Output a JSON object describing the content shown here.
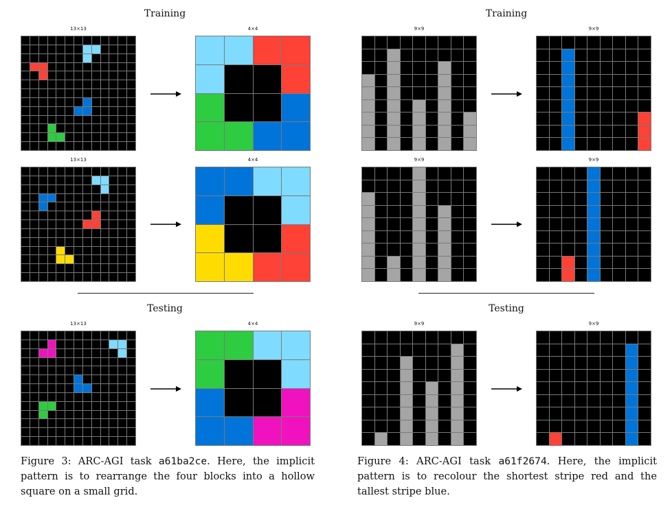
{
  "figure3": {
    "training_label": "Training",
    "testing_label": "Testing",
    "examples": [
      {
        "input": {
          "size_label": "13×13",
          "rows": 13,
          "cols": 13,
          "cells": [
            [
              1,
              7,
              "lightblue"
            ],
            [
              1,
              8,
              "lightblue"
            ],
            [
              2,
              7,
              "lightblue"
            ],
            [
              3,
              1,
              "red"
            ],
            [
              3,
              2,
              "red"
            ],
            [
              4,
              2,
              "red"
            ],
            [
              7,
              7,
              "blue"
            ],
            [
              8,
              6,
              "blue"
            ],
            [
              8,
              7,
              "blue"
            ],
            [
              10,
              3,
              "green"
            ],
            [
              11,
              3,
              "green"
            ],
            [
              11,
              4,
              "green"
            ]
          ]
        },
        "output": {
          "size_label": "4×4",
          "rows": 4,
          "cols": 4,
          "cells": [
            [
              0,
              0,
              "lightblue"
            ],
            [
              0,
              1,
              "lightblue"
            ],
            [
              1,
              0,
              "lightblue"
            ],
            [
              0,
              2,
              "red"
            ],
            [
              0,
              3,
              "red"
            ],
            [
              1,
              3,
              "red"
            ],
            [
              2,
              0,
              "green"
            ],
            [
              3,
              0,
              "green"
            ],
            [
              3,
              1,
              "green"
            ],
            [
              2,
              3,
              "blue"
            ],
            [
              3,
              2,
              "blue"
            ],
            [
              3,
              3,
              "blue"
            ]
          ]
        }
      },
      {
        "input": {
          "size_label": "13×13",
          "rows": 13,
          "cols": 13,
          "cells": [
            [
              1,
              8,
              "lightblue"
            ],
            [
              1,
              9,
              "lightblue"
            ],
            [
              2,
              9,
              "lightblue"
            ],
            [
              3,
              2,
              "blue"
            ],
            [
              3,
              3,
              "blue"
            ],
            [
              4,
              2,
              "blue"
            ],
            [
              5,
              8,
              "red"
            ],
            [
              6,
              7,
              "red"
            ],
            [
              6,
              8,
              "red"
            ],
            [
              9,
              4,
              "yellow"
            ],
            [
              10,
              4,
              "yellow"
            ],
            [
              10,
              5,
              "yellow"
            ]
          ]
        },
        "output": {
          "size_label": "4×4",
          "rows": 4,
          "cols": 4,
          "cells": [
            [
              0,
              0,
              "blue"
            ],
            [
              0,
              1,
              "blue"
            ],
            [
              1,
              0,
              "blue"
            ],
            [
              0,
              2,
              "lightblue"
            ],
            [
              0,
              3,
              "lightblue"
            ],
            [
              1,
              3,
              "lightblue"
            ],
            [
              2,
              0,
              "yellow"
            ],
            [
              3,
              0,
              "yellow"
            ],
            [
              3,
              1,
              "yellow"
            ],
            [
              2,
              3,
              "red"
            ],
            [
              3,
              2,
              "red"
            ],
            [
              3,
              3,
              "red"
            ]
          ]
        }
      },
      {
        "input": {
          "size_label": "13×13",
          "rows": 13,
          "cols": 13,
          "cells": [
            [
              1,
              3,
              "magenta"
            ],
            [
              2,
              2,
              "magenta"
            ],
            [
              2,
              3,
              "magenta"
            ],
            [
              1,
              10,
              "lightblue"
            ],
            [
              1,
              11,
              "lightblue"
            ],
            [
              2,
              11,
              "lightblue"
            ],
            [
              5,
              6,
              "blue"
            ],
            [
              6,
              6,
              "blue"
            ],
            [
              6,
              7,
              "blue"
            ],
            [
              8,
              2,
              "green"
            ],
            [
              8,
              3,
              "green"
            ],
            [
              9,
              2,
              "green"
            ]
          ]
        },
        "output": {
          "size_label": "4×4",
          "rows": 4,
          "cols": 4,
          "cells": [
            [
              0,
              0,
              "green"
            ],
            [
              0,
              1,
              "green"
            ],
            [
              1,
              0,
              "green"
            ],
            [
              0,
              2,
              "lightblue"
            ],
            [
              0,
              3,
              "lightblue"
            ],
            [
              1,
              3,
              "lightblue"
            ],
            [
              2,
              0,
              "blue"
            ],
            [
              3,
              0,
              "blue"
            ],
            [
              3,
              1,
              "blue"
            ],
            [
              2,
              3,
              "magenta"
            ],
            [
              3,
              2,
              "magenta"
            ],
            [
              3,
              3,
              "magenta"
            ]
          ]
        }
      }
    ],
    "caption": {
      "prefix": "Figure 3: ARC-AGI task ",
      "task_id": "a61ba2ce",
      "suffix": ". Here, the implicit pattern is to rearrange the four blocks into a hollow square on a small grid."
    }
  },
  "figure4": {
    "training_label": "Training",
    "testing_label": "Testing",
    "examples": [
      {
        "input": {
          "size_label": "9×9",
          "rows": 9,
          "cols": 9,
          "columns": [
            [
              0,
              6,
              "gray"
            ],
            [
              2,
              8,
              "gray"
            ],
            [
              4,
              4,
              "gray"
            ],
            [
              6,
              7,
              "gray"
            ],
            [
              8,
              3,
              "gray"
            ]
          ]
        },
        "output": {
          "size_label": "9×9",
          "rows": 9,
          "cols": 9,
          "columns": [
            [
              2,
              8,
              "blue"
            ],
            [
              8,
              3,
              "red"
            ]
          ]
        }
      },
      {
        "input": {
          "size_label": "9×9",
          "rows": 9,
          "cols": 9,
          "columns": [
            [
              0,
              7,
              "gray"
            ],
            [
              2,
              2,
              "gray"
            ],
            [
              4,
              9,
              "gray"
            ],
            [
              6,
              6,
              "gray"
            ]
          ]
        },
        "output": {
          "size_label": "9×9",
          "rows": 9,
          "cols": 9,
          "columns": [
            [
              2,
              2,
              "red"
            ],
            [
              4,
              9,
              "blue"
            ]
          ]
        }
      },
      {
        "input": {
          "size_label": "9×9",
          "rows": 9,
          "cols": 9,
          "columns": [
            [
              1,
              1,
              "gray"
            ],
            [
              3,
              7,
              "gray"
            ],
            [
              5,
              5,
              "gray"
            ],
            [
              7,
              8,
              "gray"
            ]
          ]
        },
        "output": {
          "size_label": "9×9",
          "rows": 9,
          "cols": 9,
          "columns": [
            [
              1,
              1,
              "red"
            ],
            [
              7,
              8,
              "blue"
            ]
          ]
        }
      }
    ],
    "caption": {
      "prefix": "Figure 4: ARC-AGI task ",
      "task_id": "a61f2674",
      "suffix": ". Here, the implicit pattern is to recolour the shortest stripe red and the tallest stripe blue."
    }
  },
  "palette": {
    "black": "#000000",
    "gray": "#a5a5a5",
    "lightblue": "#7fdbff",
    "red": "#ff4136",
    "blue": "#0074d9",
    "green": "#2ecc40",
    "yellow": "#ffdc00",
    "magenta": "#f012be"
  }
}
